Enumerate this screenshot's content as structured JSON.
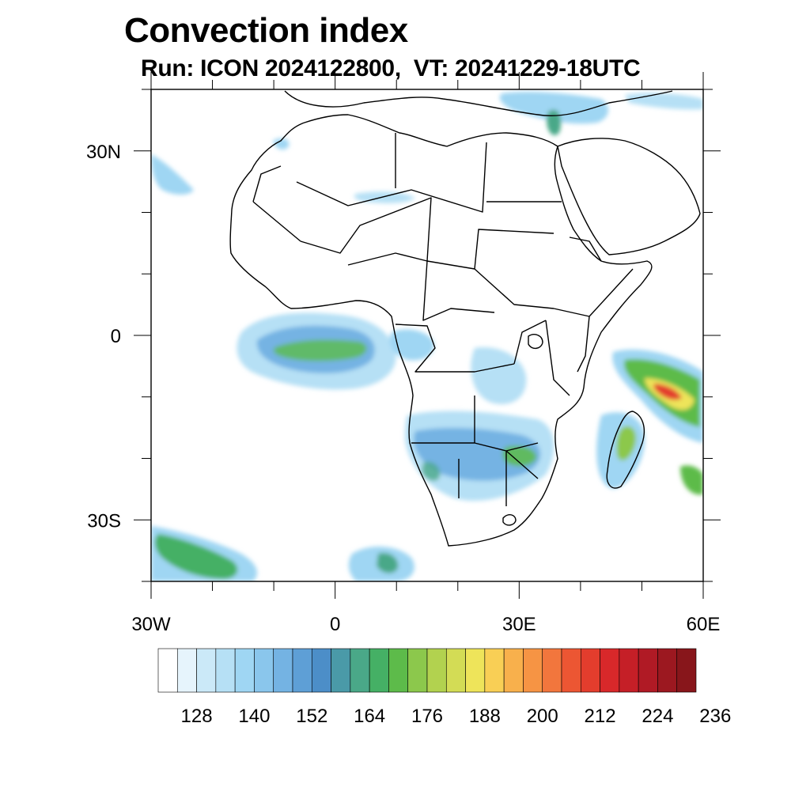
{
  "title": "Convection index",
  "subtitle": "Run: ICON 2024122800,  VT: 20241229-18UTC",
  "map": {
    "projection": "cylindrical-equidistant",
    "lon_range": [
      -30,
      60
    ],
    "lat_range": [
      -40,
      40
    ],
    "x_ticks": [
      {
        "value": -30,
        "label": "30W"
      },
      {
        "value": 0,
        "label": "0"
      },
      {
        "value": 30,
        "label": "30E"
      },
      {
        "value": 60,
        "label": "60E"
      }
    ],
    "y_ticks": [
      {
        "value": 30,
        "label": "30N"
      },
      {
        "value": 0,
        "label": "0"
      },
      {
        "value": -30,
        "label": "30S"
      }
    ]
  },
  "colorbar": {
    "colors": [
      "#ffffff",
      "#e6f4fc",
      "#cbe9f8",
      "#b6e0f5",
      "#9fd6f3",
      "#8ac6ec",
      "#74b3e3",
      "#5e9fd6",
      "#4c8ec8",
      "#4a9aa8",
      "#4aa888",
      "#45b065",
      "#5dbb4a",
      "#8cc84c",
      "#b2d24f",
      "#d3dc55",
      "#eee45a",
      "#f9cf55",
      "#f8b04c",
      "#f69444",
      "#f2763d",
      "#ec5633",
      "#e33d2d",
      "#d8282a",
      "#c51f27",
      "#b01a25",
      "#9c1820",
      "#88161b"
    ],
    "labels": [
      "128",
      "140",
      "152",
      "164",
      "176",
      "188",
      "200",
      "212",
      "224",
      "236"
    ]
  }
}
